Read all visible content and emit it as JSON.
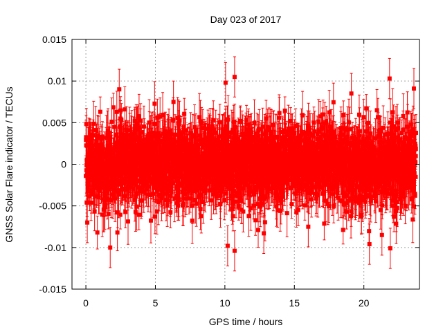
{
  "chart_data": {
    "type": "scatter",
    "title": "Day 023 of 2017",
    "xlabel": "GPS time / hours",
    "ylabel": "GNSS Solar Flare indicator / TECUs",
    "xlim": [
      -1,
      24
    ],
    "ylim": [
      -0.015,
      0.015
    ],
    "xticks": [
      0,
      5,
      10,
      15,
      20
    ],
    "xtick_labels": [
      "0",
      "5",
      "10",
      "15",
      "20"
    ],
    "yticks": [
      -0.015,
      -0.01,
      -0.005,
      0,
      0.005,
      0.01,
      0.015
    ],
    "ytick_labels": [
      "-0.015",
      "-0.01",
      "-0.005",
      "0",
      "0.005",
      "0.01",
      "0.015"
    ],
    "grid": true,
    "marker": "square",
    "error_bars": true,
    "color": "#ff0000",
    "series": [
      {
        "x_start": 0.0,
        "x_end": 23.75,
        "n_points": 2850,
        "typical_abs_value": 0.0025,
        "typical_error": 0.0022,
        "notable_points": [
          {
            "x": 2.4,
            "y": 0.009
          },
          {
            "x": 10.05,
            "y": 0.0098
          },
          {
            "x": 10.7,
            "y": 0.0105
          },
          {
            "x": 19.1,
            "y": 0.0085
          },
          {
            "x": 21.85,
            "y": 0.0103
          },
          {
            "x": 23.6,
            "y": 0.0091
          },
          {
            "x": 1.75,
            "y": -0.01
          },
          {
            "x": 10.2,
            "y": -0.0098
          },
          {
            "x": 10.7,
            "y": -0.0104
          },
          {
            "x": 20.4,
            "y": -0.0096
          },
          {
            "x": 21.9,
            "y": -0.0101
          },
          {
            "x": 0.1,
            "y": -0.007
          },
          {
            "x": 12.8,
            "y": -0.0083
          },
          {
            "x": 16.0,
            "y": -0.0075
          },
          {
            "x": 21.3,
            "y": -0.0085
          }
        ]
      }
    ]
  }
}
